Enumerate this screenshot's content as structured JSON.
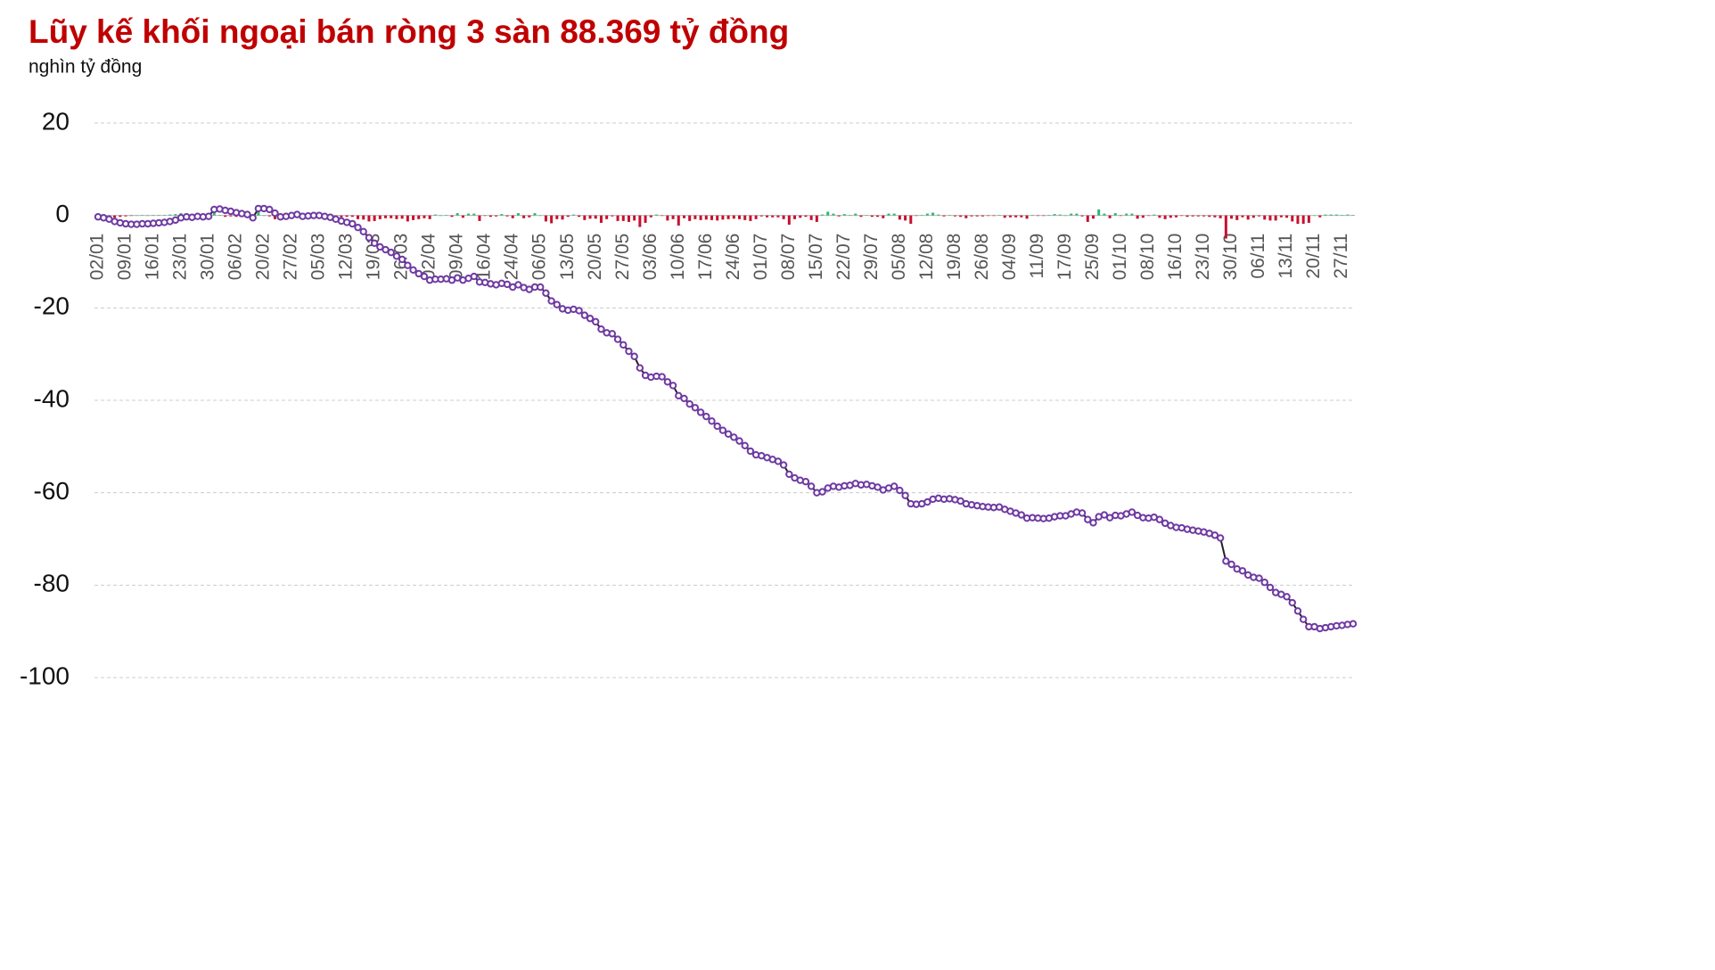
{
  "chart_data": {
    "type": "combo",
    "title": "Lũy kế khối ngoại bán ròng 3 sàn 88.369 tỷ đồng",
    "subtitle": "nghìn tỷ đồng",
    "categories": [
      "02/01",
      null,
      null,
      null,
      null,
      "09/01",
      null,
      null,
      null,
      null,
      "16/01",
      null,
      null,
      null,
      null,
      "23/01",
      null,
      null,
      null,
      null,
      "30/01",
      null,
      null,
      null,
      null,
      "06/02",
      null,
      null,
      null,
      null,
      "20/02",
      null,
      null,
      null,
      null,
      "27/02",
      null,
      null,
      null,
      null,
      "05/03",
      null,
      null,
      null,
      null,
      "12/03",
      null,
      null,
      null,
      null,
      "19/03",
      null,
      null,
      null,
      null,
      "26/03",
      null,
      null,
      null,
      null,
      "02/04",
      null,
      null,
      null,
      null,
      "09/04",
      null,
      null,
      null,
      null,
      "16/04",
      null,
      null,
      null,
      null,
      "24/04",
      null,
      null,
      null,
      null,
      "06/05",
      null,
      null,
      null,
      null,
      "13/05",
      null,
      null,
      null,
      null,
      "20/05",
      null,
      null,
      null,
      null,
      "27/05",
      null,
      null,
      null,
      null,
      "03/06",
      null,
      null,
      null,
      null,
      "10/06",
      null,
      null,
      null,
      null,
      "17/06",
      null,
      null,
      null,
      null,
      "24/06",
      null,
      null,
      null,
      null,
      "01/07",
      null,
      null,
      null,
      null,
      "08/07",
      null,
      null,
      null,
      null,
      "15/07",
      null,
      null,
      null,
      null,
      "22/07",
      null,
      null,
      null,
      null,
      "29/07",
      null,
      null,
      null,
      null,
      "05/08",
      null,
      null,
      null,
      null,
      "12/08",
      null,
      null,
      null,
      null,
      "19/08",
      null,
      null,
      null,
      null,
      "26/08",
      null,
      null,
      null,
      null,
      "04/09",
      null,
      null,
      null,
      null,
      "11/09",
      null,
      null,
      null,
      null,
      "17/09",
      null,
      null,
      null,
      null,
      "25/09",
      null,
      null,
      null,
      null,
      "01/10",
      null,
      null,
      null,
      null,
      "08/10",
      null,
      null,
      null,
      null,
      "16/10",
      null,
      null,
      null,
      null,
      "23/10",
      null,
      null,
      null,
      null,
      "30/10",
      null,
      null,
      null,
      null,
      "06/11",
      null,
      null,
      null,
      null,
      "13/11",
      null,
      null,
      null,
      null,
      "20/11",
      null,
      null,
      null,
      null,
      "27/11",
      null,
      null
    ],
    "series": [
      {
        "type": "bar",
        "positive_color": "#2eb872",
        "negative_color": "#c8102e",
        "values": [
          -0.3,
          -0.2,
          -0.3,
          -0.5,
          -0.3,
          -0.2,
          -0.1,
          0,
          0.1,
          0,
          0.1,
          0.1,
          0.1,
          0.2,
          0.3,
          0.5,
          0.2,
          -0.1,
          0.2,
          -0.1,
          0.1,
          1.5,
          0.1,
          -0.3,
          -0.2,
          -0.3,
          -0.2,
          -0.2,
          -0.7,
          2.0,
          0,
          -0.2,
          -0.8,
          -0.8,
          0.1,
          0.2,
          0.2,
          -0.4,
          0.1,
          0.1,
          0,
          -0.2,
          -0.2,
          -0.4,
          -0.4,
          -0.3,
          -0.3,
          -0.8,
          -0.9,
          -1.3,
          -1.2,
          -0.8,
          -0.6,
          -0.6,
          -0.8,
          -0.7,
          -1.3,
          -1.0,
          -0.8,
          -0.6,
          -0.8,
          0.2,
          0,
          0.1,
          -0.3,
          0.5,
          -0.5,
          0.4,
          0.4,
          -1.2,
          -0.1,
          -0.3,
          -0.2,
          0.3,
          -0.2,
          -0.6,
          0.5,
          -0.6,
          -0.4,
          0.5,
          0,
          -1.3,
          -1.7,
          -0.8,
          -0.9,
          -0.3,
          0.2,
          -0.3,
          -1.0,
          -0.7,
          -0.7,
          -1.6,
          -0.8,
          -0.2,
          -1.2,
          -1.2,
          -1.4,
          -1.1,
          -2.5,
          -1.6,
          -0.4,
          0.2,
          -0.1,
          -1.1,
          -0.8,
          -2.2,
          -0.6,
          -1.2,
          -0.8,
          -1.0,
          -0.9,
          -1.0,
          -1.1,
          -0.9,
          -0.8,
          -0.7,
          -0.8,
          -1.0,
          -1.2,
          -0.8,
          -0.2,
          -0.4,
          -0.4,
          -0.4,
          -0.8,
          -2.0,
          -0.8,
          -0.5,
          -0.3,
          -1.0,
          -1.4,
          0.2,
          0.8,
          0.4,
          -0.2,
          0.3,
          0.1,
          0.4,
          -0.3,
          0.1,
          -0.3,
          -0.3,
          -0.6,
          0.4,
          0.4,
          -0.9,
          -1.1,
          -1.8,
          -0.1,
          0.1,
          0.4,
          0.6,
          0.2,
          -0.2,
          0.1,
          -0.2,
          -0.3,
          -0.6,
          -0.2,
          -0.2,
          -0.2,
          -0.1,
          -0.1,
          0.1,
          -0.5,
          -0.4,
          -0.4,
          -0.4,
          -0.7,
          0.1,
          -0.1,
          -0.1,
          0.1,
          0.3,
          0.2,
          0,
          0.4,
          0.4,
          -0.2,
          -1.4,
          -0.7,
          1.3,
          0.4,
          -0.6,
          0.5,
          -0.1,
          0.4,
          0.4,
          -0.7,
          -0.5,
          -0.1,
          0.2,
          -0.5,
          -0.8,
          -0.5,
          -0.4,
          -0.1,
          -0.3,
          -0.2,
          -0.2,
          -0.2,
          -0.3,
          -0.4,
          -0.6,
          -5.0,
          -0.7,
          -1.0,
          -0.4,
          -0.9,
          -0.5,
          -0.2,
          -0.9,
          -1.1,
          -1.1,
          -0.4,
          -0.5,
          -1.3,
          -1.8,
          -1.8,
          -1.6,
          0,
          -0.4,
          0.2,
          0.2,
          0.2,
          0.1,
          0.2,
          0.1
        ]
      },
      {
        "type": "line",
        "color": "#6f3aa3",
        "line_color": "#222222",
        "values": [
          -0.3,
          -0.5,
          -0.8,
          -1.3,
          -1.6,
          -1.8,
          -1.9,
          -1.9,
          -1.8,
          -1.8,
          -1.7,
          -1.6,
          -1.5,
          -1.3,
          -1.0,
          -0.5,
          -0.3,
          -0.4,
          -0.2,
          -0.3,
          -0.2,
          1.3,
          1.4,
          1.1,
          0.9,
          0.6,
          0.4,
          0.2,
          -0.5,
          1.5,
          1.5,
          1.3,
          0.5,
          -0.3,
          -0.2,
          0.0,
          0.2,
          -0.2,
          -0.1,
          0.0,
          0.0,
          -0.2,
          -0.4,
          -0.8,
          -1.2,
          -1.5,
          -1.8,
          -2.6,
          -3.5,
          -4.8,
          -6.0,
          -6.8,
          -7.4,
          -8.0,
          -8.8,
          -9.5,
          -10.8,
          -11.8,
          -12.6,
          -13.2,
          -14.0,
          -13.8,
          -13.8,
          -13.7,
          -14.0,
          -13.5,
          -14.0,
          -13.6,
          -13.2,
          -14.4,
          -14.5,
          -14.8,
          -15.0,
          -14.7,
          -14.9,
          -15.5,
          -15.0,
          -15.6,
          -16.0,
          -15.5,
          -15.5,
          -16.8,
          -18.5,
          -19.3,
          -20.2,
          -20.5,
          -20.3,
          -20.6,
          -21.6,
          -22.3,
          -23.0,
          -24.6,
          -25.4,
          -25.6,
          -26.8,
          -28.0,
          -29.4,
          -30.5,
          -33.0,
          -34.6,
          -35.0,
          -34.8,
          -34.9,
          -36.0,
          -36.8,
          -39.0,
          -39.6,
          -40.8,
          -41.6,
          -42.6,
          -43.5,
          -44.5,
          -45.6,
          -46.5,
          -47.3,
          -48.0,
          -48.8,
          -49.8,
          -51.0,
          -51.8,
          -52.0,
          -52.4,
          -52.8,
          -53.2,
          -54.0,
          -56.0,
          -56.8,
          -57.3,
          -57.6,
          -58.6,
          -60.0,
          -59.8,
          -59.0,
          -58.6,
          -58.8,
          -58.5,
          -58.4,
          -58.0,
          -58.3,
          -58.2,
          -58.5,
          -58.8,
          -59.4,
          -59.0,
          -58.6,
          -59.5,
          -60.6,
          -62.4,
          -62.5,
          -62.4,
          -62.0,
          -61.4,
          -61.2,
          -61.4,
          -61.3,
          -61.5,
          -61.8,
          -62.4,
          -62.6,
          -62.8,
          -63.0,
          -63.1,
          -63.2,
          -63.1,
          -63.6,
          -64.0,
          -64.4,
          -64.8,
          -65.5,
          -65.4,
          -65.5,
          -65.6,
          -65.5,
          -65.2,
          -65.0,
          -65.0,
          -64.6,
          -64.2,
          -64.4,
          -65.8,
          -66.5,
          -65.2,
          -64.8,
          -65.4,
          -64.9,
          -65.0,
          -64.6,
          -64.2,
          -64.9,
          -65.4,
          -65.5,
          -65.3,
          -65.8,
          -66.6,
          -67.1,
          -67.5,
          -67.6,
          -67.9,
          -68.1,
          -68.3,
          -68.5,
          -68.8,
          -69.2,
          -69.8,
          -74.8,
          -75.5,
          -76.5,
          -76.9,
          -77.8,
          -78.3,
          -78.5,
          -79.4,
          -80.5,
          -81.6,
          -82.0,
          -82.5,
          -83.8,
          -85.6,
          -87.4,
          -89.0,
          -89.0,
          -89.4,
          -89.2,
          -89.0,
          -88.8,
          -88.7,
          -88.5,
          -88.369
        ]
      }
    ],
    "ylim": [
      -100,
      20
    ],
    "yticks": [
      20,
      0,
      -20,
      -40,
      -60,
      -80,
      -100
    ],
    "grid": true
  }
}
